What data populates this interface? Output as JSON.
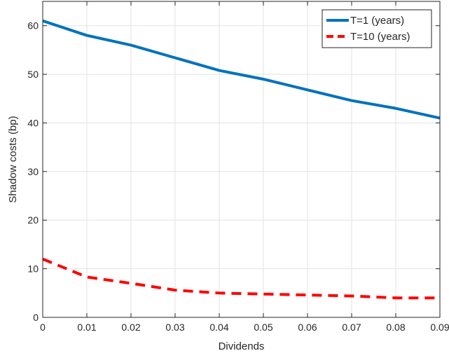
{
  "chart_data": {
    "type": "line",
    "title": "",
    "xlabel": "Dividends",
    "ylabel": "Shadow costs (bp)",
    "xlim": [
      0,
      0.09
    ],
    "ylim": [
      0,
      65
    ],
    "xticks": [
      0,
      0.01,
      0.02,
      0.03,
      0.04,
      0.05,
      0.06,
      0.07,
      0.08,
      0.09
    ],
    "xtick_labels": [
      "0",
      "0.01",
      "0.02",
      "0.03",
      "0.04",
      "0.05",
      "0.06",
      "0.07",
      "0.08",
      "0.09"
    ],
    "yticks": [
      0,
      10,
      20,
      30,
      40,
      50,
      60
    ],
    "ytick_labels": [
      "0",
      "10",
      "20",
      "30",
      "40",
      "50",
      "60"
    ],
    "grid": true,
    "legend_position": "top-right",
    "x": [
      0,
      0.01,
      0.02,
      0.03,
      0.04,
      0.05,
      0.06,
      0.07,
      0.08,
      0.09
    ],
    "series": [
      {
        "name": "T=1 (years)",
        "color": "#0072BD",
        "style": "solid",
        "values": [
          61.0,
          58.0,
          56.0,
          53.4,
          50.8,
          49.0,
          46.8,
          44.6,
          43.0,
          41.0
        ]
      },
      {
        "name": "T=10 (years)",
        "color": "#FF0000",
        "style": "dashed",
        "values": [
          12.0,
          8.3,
          7.0,
          5.6,
          5.0,
          4.8,
          4.6,
          4.4,
          4.0,
          4.0
        ]
      }
    ]
  }
}
